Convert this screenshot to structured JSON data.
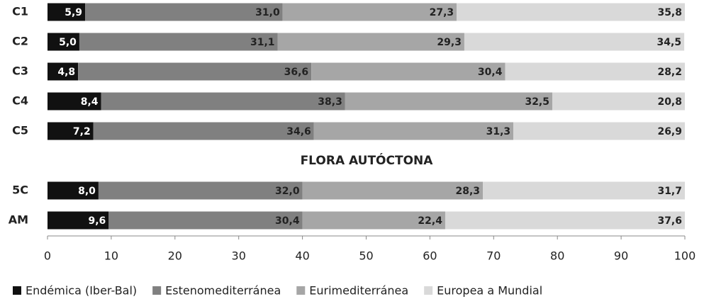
{
  "chart_data": {
    "type": "stacked_barh",
    "categories": [
      "C1",
      "C2",
      "C3",
      "C4",
      "C5",
      "5C",
      "AM"
    ],
    "annotation": "FLORA AUTÓCTONA",
    "series": [
      {
        "name": "Endémica (Iber-Bal)",
        "color": "#111111",
        "values": [
          5.9,
          5.0,
          4.8,
          8.4,
          7.2,
          8.0,
          9.6
        ],
        "value_labels": [
          "5,9",
          "5,0",
          "4,8",
          "8,4",
          "7,2",
          "8,0",
          "9,6"
        ]
      },
      {
        "name": "Estenomediterránea",
        "color": "#808080",
        "values": [
          31.0,
          31.1,
          36.6,
          38.3,
          34.6,
          32.0,
          30.4
        ],
        "value_labels": [
          "31,0",
          "31,1",
          "36,6",
          "38,3",
          "34,6",
          "32,0",
          "30,4"
        ]
      },
      {
        "name": "Eurimediterránea",
        "color": "#a6a6a6",
        "values": [
          27.3,
          29.3,
          30.4,
          32.5,
          31.3,
          28.3,
          22.4
        ],
        "value_labels": [
          "27,3",
          "29,3",
          "30,4",
          "32,5",
          "31,3",
          "28,3",
          "22,4"
        ]
      },
      {
        "name": "Europea a Mundial",
        "color": "#d9d9d9",
        "values": [
          35.8,
          34.5,
          28.2,
          20.8,
          26.9,
          31.7,
          37.6
        ],
        "value_labels": [
          "35,8",
          "34,5",
          "28,2",
          "20,8",
          "26,9",
          "31,7",
          "37,6"
        ]
      }
    ],
    "xlim": [
      0,
      100
    ],
    "xticks": [
      0,
      10,
      20,
      30,
      40,
      50,
      60,
      70,
      80,
      90,
      100
    ],
    "legend": "bottom"
  }
}
